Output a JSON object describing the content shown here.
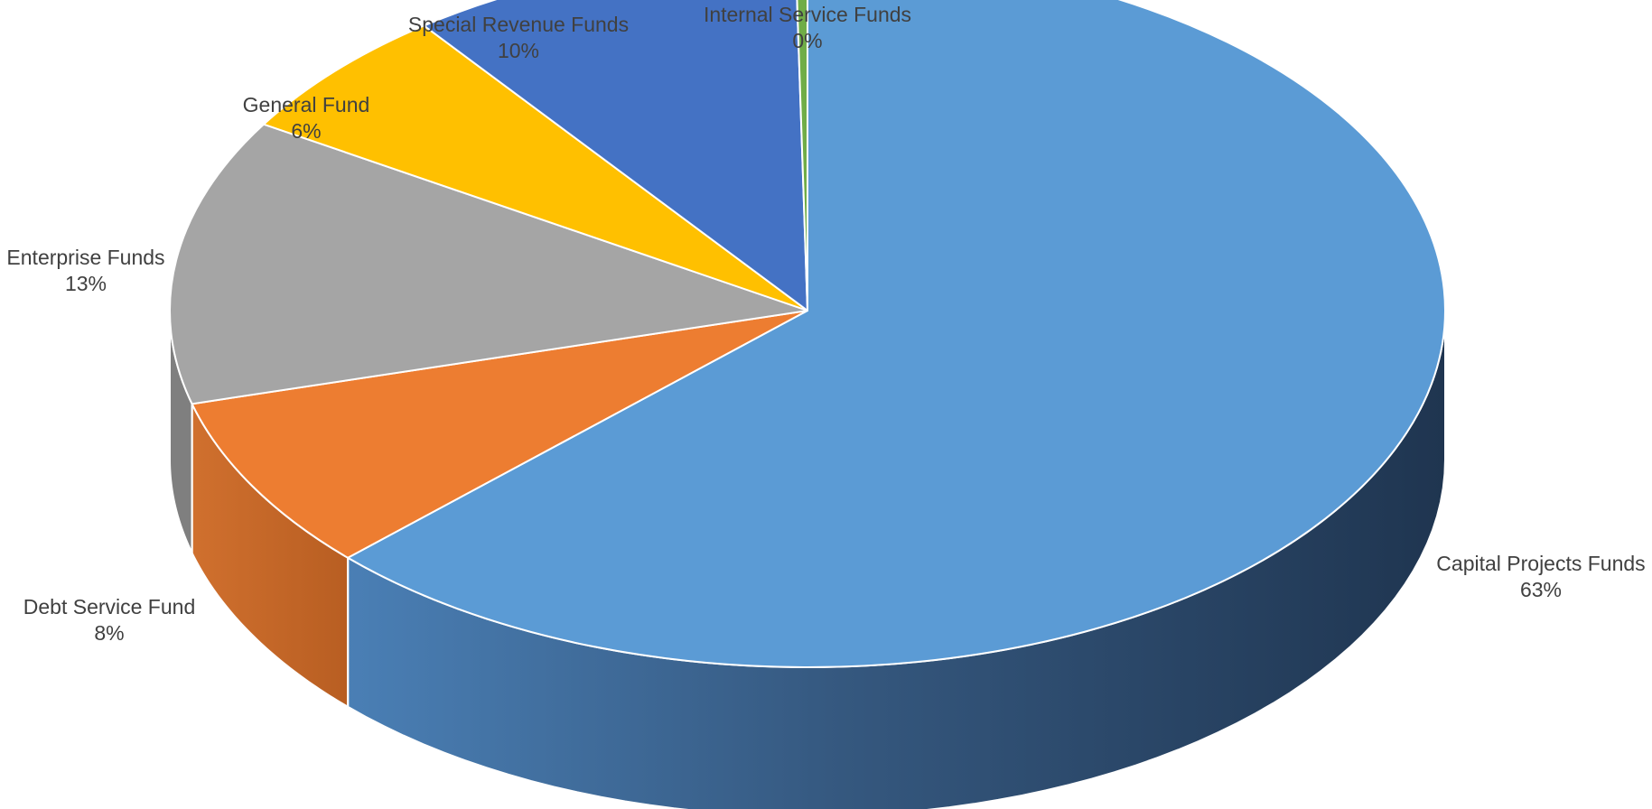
{
  "chart_data": {
    "type": "pie",
    "style": "3d",
    "title": "",
    "slices": [
      {
        "label": "Capital Projects Funds",
        "value": 63,
        "value_label": "63%",
        "color": "#5B9BD5",
        "side_color": "#41719C"
      },
      {
        "label": "Debt Service Fund",
        "value": 8,
        "value_label": "8%",
        "color": "#ED7D31",
        "side_color": "#C55A11"
      },
      {
        "label": "Enterprise Funds",
        "value": 13,
        "value_label": "13%",
        "color": "#A5A5A5",
        "side_color": "#7F7F7F"
      },
      {
        "label": "General Fund",
        "value": 6,
        "value_label": "6%",
        "color": "#FFC000",
        "side_color": "#BF9000"
      },
      {
        "label": "Special Revenue Funds",
        "value": 10,
        "value_label": "10%",
        "color": "#4472C4",
        "side_color": "#2F5597"
      },
      {
        "label": "Internal Service Funds",
        "value": 0.3,
        "value_label": "0%",
        "color": "#70AD47",
        "side_color": "#548235"
      }
    ]
  }
}
